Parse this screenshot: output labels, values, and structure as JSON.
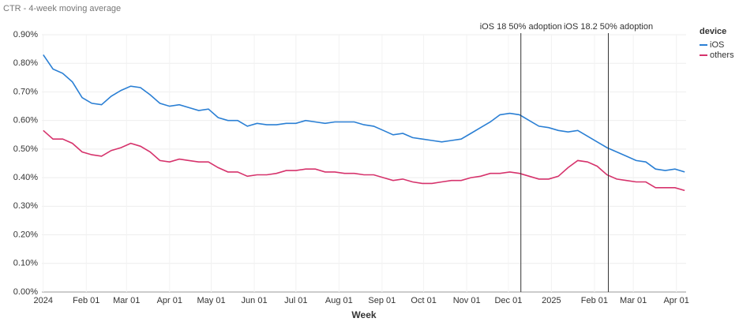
{
  "chart_data": {
    "type": "line",
    "title": "CTR - 4-week moving average",
    "x_label": "Week",
    "legend_title": "device",
    "legend": "right",
    "grid": true,
    "x": [
      "2024-01-01",
      "2024-01-08",
      "2024-01-15",
      "2024-01-22",
      "2024-01-29",
      "2024-02-05",
      "2024-02-12",
      "2024-02-19",
      "2024-02-26",
      "2024-03-04",
      "2024-03-11",
      "2024-03-18",
      "2024-03-25",
      "2024-04-01",
      "2024-04-08",
      "2024-04-15",
      "2024-04-22",
      "2024-04-29",
      "2024-05-06",
      "2024-05-13",
      "2024-05-20",
      "2024-05-27",
      "2024-06-03",
      "2024-06-10",
      "2024-06-17",
      "2024-06-24",
      "2024-07-01",
      "2024-07-08",
      "2024-07-15",
      "2024-07-22",
      "2024-07-29",
      "2024-08-05",
      "2024-08-12",
      "2024-08-19",
      "2024-08-26",
      "2024-09-02",
      "2024-09-09",
      "2024-09-16",
      "2024-09-23",
      "2024-09-30",
      "2024-10-07",
      "2024-10-14",
      "2024-10-21",
      "2024-10-28",
      "2024-11-04",
      "2024-11-11",
      "2024-11-18",
      "2024-11-25",
      "2024-12-02",
      "2024-12-09",
      "2024-12-16",
      "2024-12-23",
      "2024-12-30",
      "2025-01-06",
      "2025-01-13",
      "2025-01-20",
      "2025-01-27",
      "2025-02-03",
      "2025-02-10",
      "2025-02-17",
      "2025-02-24",
      "2025-03-03",
      "2025-03-10",
      "2025-03-17",
      "2025-03-24",
      "2025-03-31",
      "2025-04-07"
    ],
    "series": [
      {
        "name": "iOS",
        "color": "#2a7fd4",
        "values": [
          0.83,
          0.78,
          0.765,
          0.735,
          0.68,
          0.66,
          0.655,
          0.685,
          0.705,
          0.72,
          0.715,
          0.69,
          0.66,
          0.65,
          0.655,
          0.645,
          0.635,
          0.64,
          0.61,
          0.6,
          0.6,
          0.58,
          0.59,
          0.585,
          0.585,
          0.59,
          0.59,
          0.6,
          0.595,
          0.59,
          0.595,
          0.595,
          0.595,
          0.585,
          0.58,
          0.565,
          0.55,
          0.555,
          0.54,
          0.535,
          0.53,
          0.525,
          0.53,
          0.535,
          0.555,
          0.575,
          0.595,
          0.62,
          0.625,
          0.62,
          0.6,
          0.58,
          0.575,
          0.565,
          0.56,
          0.565,
          0.545,
          0.525,
          0.505,
          0.49,
          0.475,
          0.46,
          0.455,
          0.43,
          0.425,
          0.43,
          0.42
        ]
      },
      {
        "name": "others",
        "color": "#d6336c",
        "values": [
          0.565,
          0.535,
          0.535,
          0.52,
          0.49,
          0.48,
          0.475,
          0.495,
          0.505,
          0.52,
          0.51,
          0.49,
          0.46,
          0.455,
          0.465,
          0.46,
          0.455,
          0.455,
          0.435,
          0.42,
          0.42,
          0.405,
          0.41,
          0.41,
          0.415,
          0.425,
          0.425,
          0.43,
          0.43,
          0.42,
          0.42,
          0.415,
          0.415,
          0.41,
          0.41,
          0.4,
          0.39,
          0.395,
          0.385,
          0.38,
          0.38,
          0.385,
          0.39,
          0.39,
          0.4,
          0.405,
          0.415,
          0.415,
          0.42,
          0.415,
          0.405,
          0.395,
          0.395,
          0.405,
          0.435,
          0.46,
          0.455,
          0.44,
          0.41,
          0.395,
          0.39,
          0.385,
          0.385,
          0.365,
          0.365,
          0.365,
          0.355
        ]
      }
    ],
    "xlim": [
      "2023-12-31",
      "2025-04-08"
    ],
    "xticks": [
      {
        "value": "2024-01-01",
        "label": "2024"
      },
      {
        "value": "2024-02-01",
        "label": "Feb 01"
      },
      {
        "value": "2024-03-01",
        "label": "Mar 01"
      },
      {
        "value": "2024-04-01",
        "label": "Apr 01"
      },
      {
        "value": "2024-05-01",
        "label": "May 01"
      },
      {
        "value": "2024-06-01",
        "label": "Jun 01"
      },
      {
        "value": "2024-07-01",
        "label": "Jul 01"
      },
      {
        "value": "2024-08-01",
        "label": "Aug 01"
      },
      {
        "value": "2024-09-01",
        "label": "Sep 01"
      },
      {
        "value": "2024-10-01",
        "label": "Oct 01"
      },
      {
        "value": "2024-11-01",
        "label": "Nov 01"
      },
      {
        "value": "2024-12-01",
        "label": "Dec 01"
      },
      {
        "value": "2025-01-01",
        "label": "2025"
      },
      {
        "value": "2025-02-01",
        "label": "Feb 01"
      },
      {
        "value": "2025-03-01",
        "label": "Mar 01"
      },
      {
        "value": "2025-04-01",
        "label": "Apr 01"
      }
    ],
    "ylim": [
      0,
      0.9
    ],
    "yticks": [
      {
        "value": 0,
        "label": "0.00%"
      },
      {
        "value": 0.1,
        "label": "0.10%"
      },
      {
        "value": 0.2,
        "label": "0.20%"
      },
      {
        "value": 0.3,
        "label": "0.30%"
      },
      {
        "value": 0.4,
        "label": "0.40%"
      },
      {
        "value": 0.5,
        "label": "0.50%"
      },
      {
        "value": 0.6,
        "label": "0.60%"
      },
      {
        "value": 0.7,
        "label": "0.70%"
      },
      {
        "value": 0.8,
        "label": "0.80%"
      },
      {
        "value": 0.9,
        "label": "0.90%"
      }
    ],
    "annotations": [
      {
        "x": "2024-12-10",
        "text": "iOS 18 50% adoption"
      },
      {
        "x": "2025-02-11",
        "text": "iOS 18.2 50% adoption"
      }
    ]
  }
}
